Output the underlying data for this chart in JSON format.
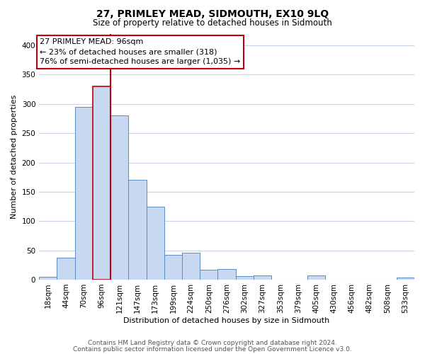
{
  "title": "27, PRIMLEY MEAD, SIDMOUTH, EX10 9LQ",
  "subtitle": "Size of property relative to detached houses in Sidmouth",
  "xlabel": "Distribution of detached houses by size in Sidmouth",
  "ylabel": "Number of detached properties",
  "footer_line1": "Contains HM Land Registry data © Crown copyright and database right 2024.",
  "footer_line2": "Contains public sector information licensed under the Open Government Licence v3.0.",
  "bin_labels": [
    "18sqm",
    "44sqm",
    "70sqm",
    "96sqm",
    "121sqm",
    "147sqm",
    "173sqm",
    "199sqm",
    "224sqm",
    "250sqm",
    "276sqm",
    "302sqm",
    "327sqm",
    "353sqm",
    "379sqm",
    "405sqm",
    "430sqm",
    "456sqm",
    "482sqm",
    "508sqm",
    "533sqm"
  ],
  "bar_heights": [
    5,
    37,
    295,
    330,
    280,
    170,
    124,
    42,
    46,
    17,
    18,
    6,
    7,
    0,
    0,
    7,
    0,
    0,
    0,
    0,
    3
  ],
  "bar_color": "#c6d9f0",
  "bar_edge_color": "#5b8cc8",
  "highlight_bar_index": 3,
  "highlight_bar_edge_color": "#c0000a",
  "vline_color": "#c0000a",
  "vline_bar_index": 3,
  "annotation_line1": "27 PRIMLEY MEAD: 96sqm",
  "annotation_line2": "← 23% of detached houses are smaller (318)",
  "annotation_line3": "76% of semi-detached houses are larger (1,035) →",
  "annotation_box_edge_color": "#c0000a",
  "annotation_box_face_color": "#ffffff",
  "ylim": [
    0,
    420
  ],
  "yticks": [
    0,
    50,
    100,
    150,
    200,
    250,
    300,
    350,
    400
  ],
  "background_color": "#ffffff",
  "grid_color": "#c8d4e8",
  "title_fontsize": 10,
  "subtitle_fontsize": 8.5,
  "axis_label_fontsize": 8,
  "tick_fontsize": 7.5,
  "annotation_fontsize": 8,
  "footer_fontsize": 6.5
}
